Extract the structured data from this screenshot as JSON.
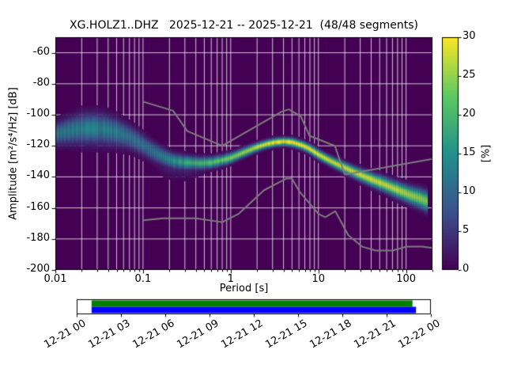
{
  "title": "XG.HOLZ1..DHZ   2025-12-21 -- 2025-12-21  (48/48 segments)",
  "axes": {
    "xlabel": "Period [s]",
    "ylabel": "Amplitude [m²/s⁴/Hz] [dB]",
    "x_tick_labels": [
      "0.01",
      "0.1",
      "1",
      "10",
      "100"
    ],
    "x_tick_values": [
      0.01,
      0.1,
      1,
      10,
      100
    ],
    "y_tick_labels": [
      "-60",
      "-80",
      "-100",
      "-120",
      "-140",
      "-160",
      "-180",
      "-200"
    ],
    "y_tick_values": [
      -60,
      -80,
      -100,
      -120,
      -140,
      -160,
      -180,
      -200
    ]
  },
  "colorbar": {
    "label": "[%]",
    "tick_labels": [
      "0",
      "5",
      "10",
      "15",
      "20",
      "25",
      "30"
    ],
    "tick_values": [
      0,
      5,
      10,
      15,
      20,
      25,
      30
    ]
  },
  "timeline": {
    "tick_labels": [
      "12-21 00",
      "12-21 03",
      "12-21 06",
      "12-21 09",
      "12-21 12",
      "12-21 15",
      "12-21 18",
      "12-21 21",
      "12-22 00"
    ],
    "coverage": {
      "green_span_frac": [
        0.042,
        0.948
      ],
      "blue_span_frac": [
        0.042,
        0.958
      ],
      "green_color": "#008000",
      "blue_color": "#0000ff"
    }
  },
  "chart_data": {
    "type": "heatmap",
    "description": "PPSD probabilistic power spectral density; probability [%] of PSD value vs period, viridis colormap on dark-purple (0%) background, with Peterson NHNM/NLNM noise model curves in gray",
    "title": "XG.HOLZ1..DHZ   2025-12-21 -- 2025-12-21  (48/48 segments)",
    "xlabel": "Period [s]",
    "ylabel": "Amplitude [m²/s⁴/Hz] [dB]",
    "xscale": "log",
    "xlim": [
      0.01,
      200
    ],
    "ylim": [
      -200,
      -50
    ],
    "grid": true,
    "colorbar_label": "[%]",
    "colorbar_range": [
      0,
      30
    ],
    "background_value_color": "#440154",
    "grid_color": "#ffffff",
    "noise_model_color": "#7d7d7d",
    "psd_mode_db": [
      [
        0.01,
        -112
      ],
      [
        0.013,
        -110.5
      ],
      [
        0.018,
        -109
      ],
      [
        0.025,
        -108.5
      ],
      [
        0.035,
        -109
      ],
      [
        0.05,
        -111
      ],
      [
        0.065,
        -113.5
      ],
      [
        0.08,
        -116
      ],
      [
        0.1,
        -119.5
      ],
      [
        0.13,
        -123.5
      ],
      [
        0.17,
        -127
      ],
      [
        0.22,
        -129.5
      ],
      [
        0.3,
        -130.5
      ],
      [
        0.45,
        -131
      ],
      [
        0.6,
        -130.5
      ],
      [
        0.8,
        -129
      ],
      [
        1,
        -127.5
      ],
      [
        1.4,
        -124
      ],
      [
        2,
        -120.5
      ],
      [
        2.6,
        -118.5
      ],
      [
        3.2,
        -117.5
      ],
      [
        4,
        -117
      ],
      [
        5,
        -117.5
      ],
      [
        6.5,
        -119.5
      ],
      [
        8,
        -122
      ],
      [
        10,
        -125.5
      ],
      [
        13,
        -129
      ],
      [
        16,
        -131.5
      ],
      [
        20,
        -134
      ],
      [
        26,
        -137
      ],
      [
        33,
        -139.5
      ],
      [
        42,
        -142
      ],
      [
        55,
        -144.5
      ],
      [
        70,
        -147
      ],
      [
        90,
        -149.5
      ],
      [
        110,
        -151.5
      ],
      [
        140,
        -153.5
      ],
      [
        170,
        -155.5
      ]
    ],
    "psd_halfwidth_db": [
      [
        0.01,
        4.5
      ],
      [
        0.02,
        6
      ],
      [
        0.035,
        6
      ],
      [
        0.06,
        5
      ],
      [
        0.08,
        4.5
      ],
      [
        0.12,
        4
      ],
      [
        0.2,
        3.2
      ],
      [
        0.35,
        2.6
      ],
      [
        0.6,
        2.2
      ],
      [
        1,
        2
      ],
      [
        2,
        1.7
      ],
      [
        4,
        1.6
      ],
      [
        8,
        1.8
      ],
      [
        15,
        2
      ],
      [
        25,
        2.3
      ],
      [
        50,
        2.8
      ],
      [
        90,
        3.2
      ],
      [
        170,
        4
      ]
    ],
    "psd_peak_percent": [
      [
        0.01,
        12
      ],
      [
        0.02,
        14
      ],
      [
        0.04,
        14
      ],
      [
        0.07,
        12
      ],
      [
        0.1,
        11
      ],
      [
        0.15,
        13
      ],
      [
        0.25,
        17
      ],
      [
        0.4,
        20
      ],
      [
        0.7,
        22
      ],
      [
        1,
        24
      ],
      [
        1.8,
        27
      ],
      [
        3,
        30
      ],
      [
        6,
        30
      ],
      [
        10,
        29
      ],
      [
        20,
        28
      ],
      [
        40,
        28
      ],
      [
        80,
        27
      ],
      [
        170,
        24
      ]
    ],
    "psd_lower_tail_db": [
      [
        0.09,
        0
      ],
      [
        0.12,
        7
      ],
      [
        0.18,
        10
      ],
      [
        0.3,
        9
      ],
      [
        0.45,
        6
      ],
      [
        0.6,
        3
      ],
      [
        0.75,
        0
      ]
    ],
    "noise_models": {
      "nhnm": [
        [
          0.1,
          -91.5
        ],
        [
          0.22,
          -97.4
        ],
        [
          0.32,
          -110.5
        ],
        [
          0.8,
          -120
        ],
        [
          3.8,
          -98
        ],
        [
          4.6,
          -96.5
        ],
        [
          6.3,
          -101
        ],
        [
          7.9,
          -113.5
        ],
        [
          15.4,
          -120
        ],
        [
          20,
          -138.5
        ],
        [
          354.8,
          -126
        ]
      ],
      "nlnm": [
        [
          0.1,
          -168
        ],
        [
          0.17,
          -166.7
        ],
        [
          0.4,
          -166.7
        ],
        [
          0.8,
          -169.2
        ],
        [
          1.24,
          -163.7
        ],
        [
          2.4,
          -148.6
        ],
        [
          4.3,
          -141.1
        ],
        [
          5,
          -141.1
        ],
        [
          6,
          -149
        ],
        [
          10,
          -163.8
        ],
        [
          12,
          -166
        ],
        [
          15.6,
          -162.1
        ],
        [
          21.9,
          -177.5
        ],
        [
          31.6,
          -185
        ],
        [
          45,
          -187.5
        ],
        [
          70,
          -187.5
        ],
        [
          101,
          -185
        ],
        [
          154,
          -185
        ],
        [
          328,
          -187.5
        ]
      ]
    },
    "viridis_stops": [
      [
        0,
        "#440154"
      ],
      [
        0.25,
        "#3b528b"
      ],
      [
        0.5,
        "#21918c"
      ],
      [
        0.75,
        "#5ec962"
      ],
      [
        1,
        "#fde725"
      ]
    ]
  }
}
